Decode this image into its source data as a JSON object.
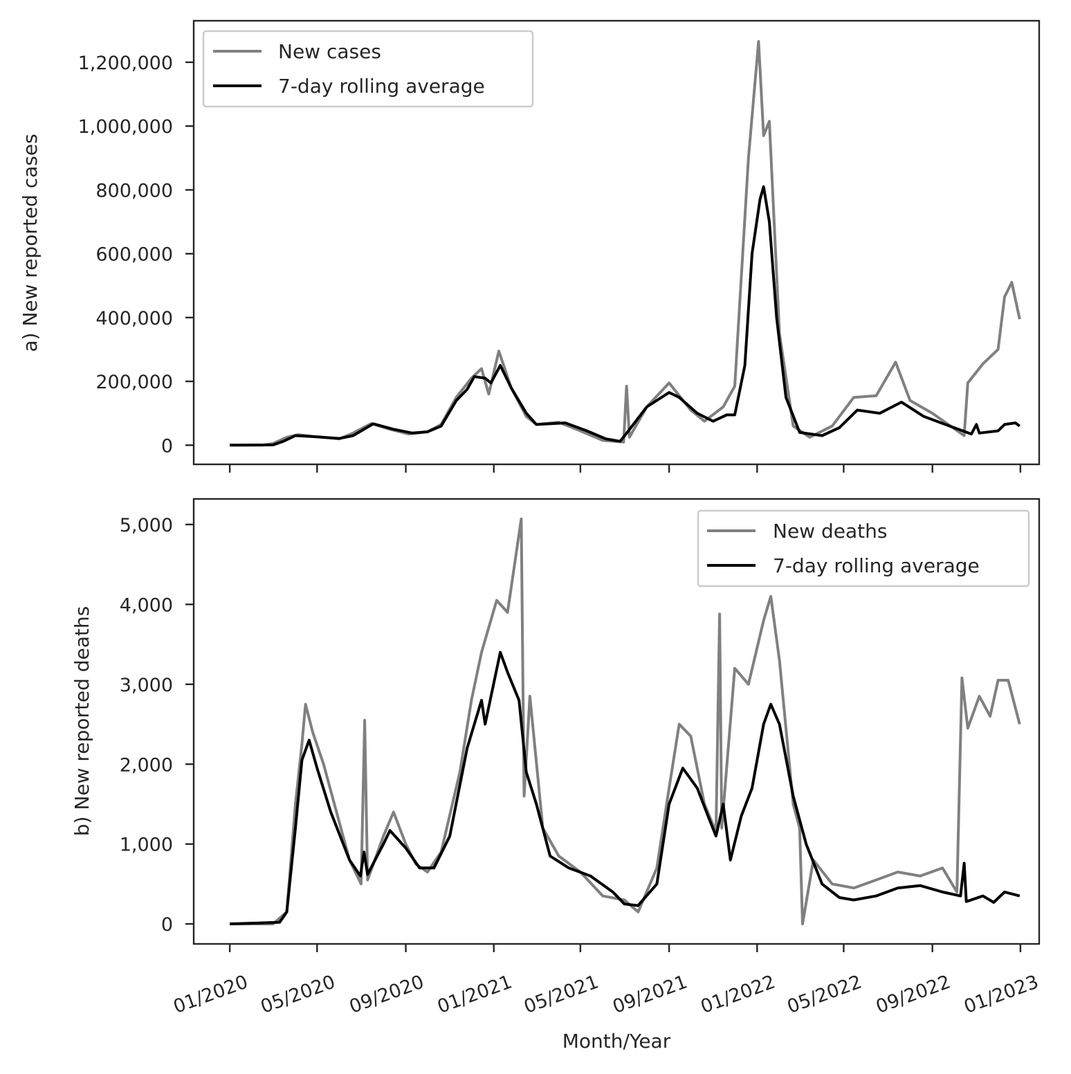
{
  "figure": {
    "xlabel": "Month/Year",
    "x_ticks": [
      "01/2020",
      "05/2020",
      "09/2020",
      "01/2021",
      "05/2021",
      "09/2021",
      "01/2022",
      "05/2022",
      "09/2022",
      "01/2023"
    ]
  },
  "colors": {
    "raw": "#808080",
    "rolling": "#000000",
    "axes": "#262626"
  },
  "chart_data": [
    {
      "type": "line",
      "panel": "a",
      "ylabel": "a) New reported cases",
      "ylim": [
        -60000,
        1330000
      ],
      "yticks": [
        0,
        200000,
        400000,
        600000,
        800000,
        1000000,
        1200000
      ],
      "ytick_labels": [
        "0",
        "200,000",
        "400,000",
        "600,000",
        "800,000",
        "1,000,000",
        "1,200,000"
      ],
      "xlim": [
        "2019-11-12",
        "2023-01-27"
      ],
      "grid": false,
      "legend_position": "top-left",
      "series": [
        {
          "name": "New cases",
          "style": "raw",
          "points": [
            [
              "2020-01-01",
              0
            ],
            [
              "2020-02-15",
              0
            ],
            [
              "2020-03-01",
              5000
            ],
            [
              "2020-03-20",
              25000
            ],
            [
              "2020-04-05",
              33000
            ],
            [
              "2020-05-01",
              26000
            ],
            [
              "2020-06-01",
              20000
            ],
            [
              "2020-06-20",
              38000
            ],
            [
              "2020-07-15",
              68000
            ],
            [
              "2020-08-10",
              50000
            ],
            [
              "2020-09-05",
              35000
            ],
            [
              "2020-10-01",
              42000
            ],
            [
              "2020-10-20",
              65000
            ],
            [
              "2020-11-10",
              150000
            ],
            [
              "2020-12-01",
              210000
            ],
            [
              "2020-12-15",
              240000
            ],
            [
              "2020-12-25",
              160000
            ],
            [
              "2021-01-08",
              295000
            ],
            [
              "2021-01-25",
              180000
            ],
            [
              "2021-02-15",
              90000
            ],
            [
              "2021-03-01",
              65000
            ],
            [
              "2021-04-01",
              72000
            ],
            [
              "2021-05-01",
              45000
            ],
            [
              "2021-06-01",
              15000
            ],
            [
              "2021-06-30",
              10000
            ],
            [
              "2021-07-04",
              185000
            ],
            [
              "2021-07-08",
              25000
            ],
            [
              "2021-08-01",
              120000
            ],
            [
              "2021-09-01",
              195000
            ],
            [
              "2021-10-01",
              110000
            ],
            [
              "2021-10-20",
              75000
            ],
            [
              "2021-11-15",
              120000
            ],
            [
              "2021-12-01",
              185000
            ],
            [
              "2021-12-20",
              900000
            ],
            [
              "2022-01-03",
              1265000
            ],
            [
              "2022-01-10",
              970000
            ],
            [
              "2022-01-18",
              1015000
            ],
            [
              "2022-02-01",
              350000
            ],
            [
              "2022-02-20",
              60000
            ],
            [
              "2022-03-15",
              25000
            ],
            [
              "2022-04-15",
              60000
            ],
            [
              "2022-05-15",
              150000
            ],
            [
              "2022-06-15",
              155000
            ],
            [
              "2022-07-12",
              260000
            ],
            [
              "2022-08-01",
              140000
            ],
            [
              "2022-09-01",
              100000
            ],
            [
              "2022-10-15",
              30000
            ],
            [
              "2022-10-20",
              195000
            ],
            [
              "2022-11-10",
              255000
            ],
            [
              "2022-12-01",
              300000
            ],
            [
              "2022-12-10",
              465000
            ],
            [
              "2022-12-20",
              510000
            ],
            [
              "2022-12-31",
              395000
            ]
          ]
        },
        {
          "name": "7-day rolling average",
          "style": "rolling",
          "points": [
            [
              "2020-01-01",
              0
            ],
            [
              "2020-03-01",
              1000
            ],
            [
              "2020-03-15",
              12000
            ],
            [
              "2020-04-01",
              30000
            ],
            [
              "2020-05-01",
              26000
            ],
            [
              "2020-06-01",
              21000
            ],
            [
              "2020-06-20",
              30000
            ],
            [
              "2020-07-18",
              67000
            ],
            [
              "2020-08-15",
              50000
            ],
            [
              "2020-09-10",
              38000
            ],
            [
              "2020-10-01",
              42000
            ],
            [
              "2020-10-20",
              60000
            ],
            [
              "2020-11-10",
              140000
            ],
            [
              "2020-11-25",
              175000
            ],
            [
              "2020-12-05",
              215000
            ],
            [
              "2020-12-20",
              210000
            ],
            [
              "2020-12-28",
              195000
            ],
            [
              "2021-01-10",
              250000
            ],
            [
              "2021-01-25",
              180000
            ],
            [
              "2021-02-15",
              100000
            ],
            [
              "2021-03-01",
              65000
            ],
            [
              "2021-04-10",
              70000
            ],
            [
              "2021-05-10",
              45000
            ],
            [
              "2021-06-05",
              20000
            ],
            [
              "2021-06-25",
              12000
            ],
            [
              "2021-07-05",
              40000
            ],
            [
              "2021-08-01",
              120000
            ],
            [
              "2021-09-01",
              165000
            ],
            [
              "2021-09-15",
              150000
            ],
            [
              "2021-10-10",
              100000
            ],
            [
              "2021-11-01",
              75000
            ],
            [
              "2021-11-20",
              95000
            ],
            [
              "2021-12-01",
              95000
            ],
            [
              "2021-12-15",
              250000
            ],
            [
              "2021-12-25",
              600000
            ],
            [
              "2022-01-05",
              770000
            ],
            [
              "2022-01-10",
              810000
            ],
            [
              "2022-01-18",
              700000
            ],
            [
              "2022-01-28",
              400000
            ],
            [
              "2022-02-10",
              150000
            ],
            [
              "2022-03-01",
              40000
            ],
            [
              "2022-04-01",
              30000
            ],
            [
              "2022-04-25",
              55000
            ],
            [
              "2022-05-20",
              110000
            ],
            [
              "2022-06-20",
              100000
            ],
            [
              "2022-07-20",
              135000
            ],
            [
              "2022-08-20",
              90000
            ],
            [
              "2022-09-25",
              60000
            ],
            [
              "2022-10-25",
              35000
            ],
            [
              "2022-11-01",
              65000
            ],
            [
              "2022-11-05",
              38000
            ],
            [
              "2022-12-01",
              45000
            ],
            [
              "2022-12-10",
              65000
            ],
            [
              "2022-12-25",
              70000
            ],
            [
              "2022-12-31",
              60000
            ]
          ]
        }
      ]
    },
    {
      "type": "line",
      "panel": "b",
      "ylabel": "b) New reported deaths",
      "ylim": [
        -250,
        5320
      ],
      "yticks": [
        0,
        1000,
        2000,
        3000,
        4000,
        5000
      ],
      "ytick_labels": [
        "0",
        "1,000",
        "2,000",
        "3,000",
        "4,000",
        "5,000"
      ],
      "xlim": [
        "2019-11-12",
        "2023-01-27"
      ],
      "grid": false,
      "legend_position": "top-right",
      "series": [
        {
          "name": "New deaths",
          "style": "raw",
          "points": [
            [
              "2020-01-01",
              0
            ],
            [
              "2020-03-01",
              0
            ],
            [
              "2020-03-20",
              150
            ],
            [
              "2020-04-01",
              1500
            ],
            [
              "2020-04-10",
              2250
            ],
            [
              "2020-04-15",
              2750
            ],
            [
              "2020-04-25",
              2400
            ],
            [
              "2020-05-10",
              2000
            ],
            [
              "2020-05-25",
              1500
            ],
            [
              "2020-06-15",
              800
            ],
            [
              "2020-07-01",
              500
            ],
            [
              "2020-07-06",
              2550
            ],
            [
              "2020-07-10",
              550
            ],
            [
              "2020-08-01",
              1100
            ],
            [
              "2020-08-15",
              1400
            ],
            [
              "2020-09-01",
              1000
            ],
            [
              "2020-09-15",
              750
            ],
            [
              "2020-10-01",
              650
            ],
            [
              "2020-10-20",
              900
            ],
            [
              "2020-11-15",
              1900
            ],
            [
              "2020-12-01",
              2800
            ],
            [
              "2020-12-15",
              3400
            ],
            [
              "2021-01-05",
              4050
            ],
            [
              "2021-01-20",
              3900
            ],
            [
              "2021-02-08",
              5070
            ],
            [
              "2021-02-12",
              1600
            ],
            [
              "2021-02-20",
              2850
            ],
            [
              "2021-03-10",
              1200
            ],
            [
              "2021-04-01",
              850
            ],
            [
              "2021-05-01",
              650
            ],
            [
              "2021-06-01",
              350
            ],
            [
              "2021-07-01",
              300
            ],
            [
              "2021-07-20",
              150
            ],
            [
              "2021-08-15",
              700
            ],
            [
              "2021-09-01",
              1700
            ],
            [
              "2021-09-15",
              2500
            ],
            [
              "2021-10-01",
              2350
            ],
            [
              "2021-10-20",
              1500
            ],
            [
              "2021-11-05",
              1150
            ],
            [
              "2021-11-10",
              3880
            ],
            [
              "2021-11-13",
              1200
            ],
            [
              "2021-12-01",
              3200
            ],
            [
              "2021-12-20",
              3000
            ],
            [
              "2022-01-10",
              3800
            ],
            [
              "2022-01-20",
              4100
            ],
            [
              "2022-02-01",
              3300
            ],
            [
              "2022-02-20",
              1500
            ],
            [
              "2022-03-01",
              1200
            ],
            [
              "2022-03-05",
              0
            ],
            [
              "2022-03-20",
              800
            ],
            [
              "2022-04-15",
              500
            ],
            [
              "2022-05-15",
              450
            ],
            [
              "2022-06-15",
              550
            ],
            [
              "2022-07-15",
              650
            ],
            [
              "2022-08-15",
              600
            ],
            [
              "2022-09-15",
              700
            ],
            [
              "2022-10-05",
              400
            ],
            [
              "2022-10-12",
              3080
            ],
            [
              "2022-10-20",
              2450
            ],
            [
              "2022-11-05",
              2850
            ],
            [
              "2022-11-20",
              2600
            ],
            [
              "2022-12-01",
              3050
            ],
            [
              "2022-12-15",
              3050
            ],
            [
              "2022-12-31",
              2500
            ]
          ]
        },
        {
          "name": "7-day rolling average",
          "style": "rolling",
          "points": [
            [
              "2020-01-01",
              0
            ],
            [
              "2020-03-10",
              20
            ],
            [
              "2020-03-20",
              150
            ],
            [
              "2020-04-01",
              1200
            ],
            [
              "2020-04-10",
              2050
            ],
            [
              "2020-04-20",
              2300
            ],
            [
              "2020-05-01",
              1950
            ],
            [
              "2020-05-20",
              1400
            ],
            [
              "2020-06-15",
              800
            ],
            [
              "2020-06-30",
              600
            ],
            [
              "2020-07-05",
              900
            ],
            [
              "2020-07-10",
              620
            ],
            [
              "2020-08-01",
              1000
            ],
            [
              "2020-08-10",
              1170
            ],
            [
              "2020-09-01",
              950
            ],
            [
              "2020-09-20",
              700
            ],
            [
              "2020-10-10",
              700
            ],
            [
              "2020-11-01",
              1100
            ],
            [
              "2020-11-25",
              2200
            ],
            [
              "2020-12-15",
              2800
            ],
            [
              "2020-12-20",
              2500
            ],
            [
              "2021-01-10",
              3400
            ],
            [
              "2021-01-20",
              3150
            ],
            [
              "2021-02-05",
              2800
            ],
            [
              "2021-02-15",
              1900
            ],
            [
              "2021-03-01",
              1500
            ],
            [
              "2021-03-20",
              850
            ],
            [
              "2021-04-15",
              700
            ],
            [
              "2021-05-15",
              600
            ],
            [
              "2021-06-15",
              400
            ],
            [
              "2021-07-01",
              250
            ],
            [
              "2021-07-20",
              230
            ],
            [
              "2021-08-15",
              500
            ],
            [
              "2021-09-01",
              1500
            ],
            [
              "2021-09-20",
              1950
            ],
            [
              "2021-10-10",
              1700
            ],
            [
              "2021-10-25",
              1350
            ],
            [
              "2021-11-05",
              1100
            ],
            [
              "2021-11-15",
              1500
            ],
            [
              "2021-11-25",
              800
            ],
            [
              "2021-12-10",
              1350
            ],
            [
              "2021-12-25",
              1700
            ],
            [
              "2022-01-10",
              2500
            ],
            [
              "2022-01-20",
              2750
            ],
            [
              "2022-02-01",
              2500
            ],
            [
              "2022-02-20",
              1600
            ],
            [
              "2022-03-10",
              1000
            ],
            [
              "2022-04-01",
              500
            ],
            [
              "2022-04-25",
              330
            ],
            [
              "2022-05-15",
              300
            ],
            [
              "2022-06-15",
              350
            ],
            [
              "2022-07-15",
              450
            ],
            [
              "2022-08-15",
              480
            ],
            [
              "2022-09-15",
              400
            ],
            [
              "2022-10-10",
              350
            ],
            [
              "2022-10-15",
              760
            ],
            [
              "2022-10-18",
              280
            ],
            [
              "2022-11-10",
              350
            ],
            [
              "2022-11-25",
              270
            ],
            [
              "2022-12-10",
              400
            ],
            [
              "2022-12-31",
              350
            ]
          ]
        }
      ]
    }
  ]
}
